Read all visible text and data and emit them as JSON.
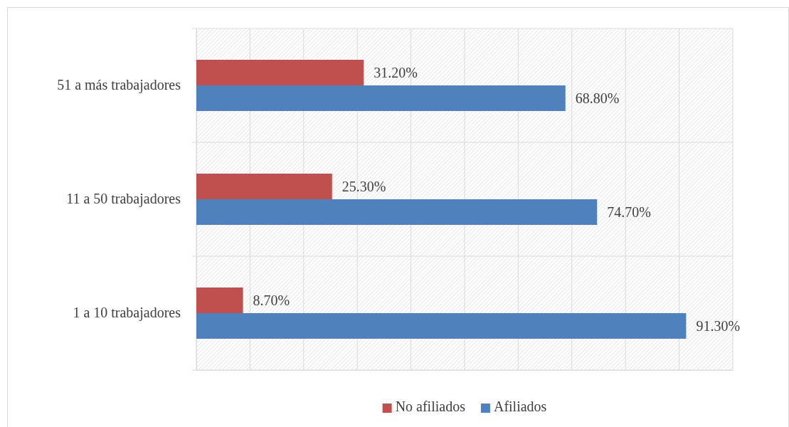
{
  "chart_data": {
    "type": "bar",
    "orientation": "horizontal",
    "categories": [
      "51 a más trabajadores",
      "11 a 50 trabajadores",
      "1 a 10 trabajadores"
    ],
    "series": [
      {
        "name": "No afiliados",
        "color": "#c0504d",
        "values": [
          31.2,
          25.3,
          8.7
        ],
        "value_labels": [
          "31.20%",
          "25.30%",
          "8.70%"
        ]
      },
      {
        "name": "Afiliados",
        "color": "#4f81bd",
        "values": [
          68.8,
          74.7,
          91.3
        ],
        "value_labels": [
          "68.80%",
          "74.70%",
          "91.30%"
        ]
      }
    ],
    "xlim": [
      0,
      100
    ],
    "xticks": [
      {
        "value": 0,
        "label": null
      },
      {
        "value": 10,
        "label": null
      },
      {
        "value": 20,
        "label": null
      },
      {
        "value": 30,
        "label": null
      },
      {
        "value": 40,
        "label": null
      },
      {
        "value": 50,
        "label": null
      },
      {
        "value": 60,
        "label": null
      },
      {
        "value": 70,
        "label": null
      },
      {
        "value": 80,
        "label": null
      },
      {
        "value": 90,
        "label": null
      },
      {
        "value": 100,
        "label": null
      }
    ],
    "tick_labels": "y",
    "grid": true,
    "legend": "bottom"
  }
}
